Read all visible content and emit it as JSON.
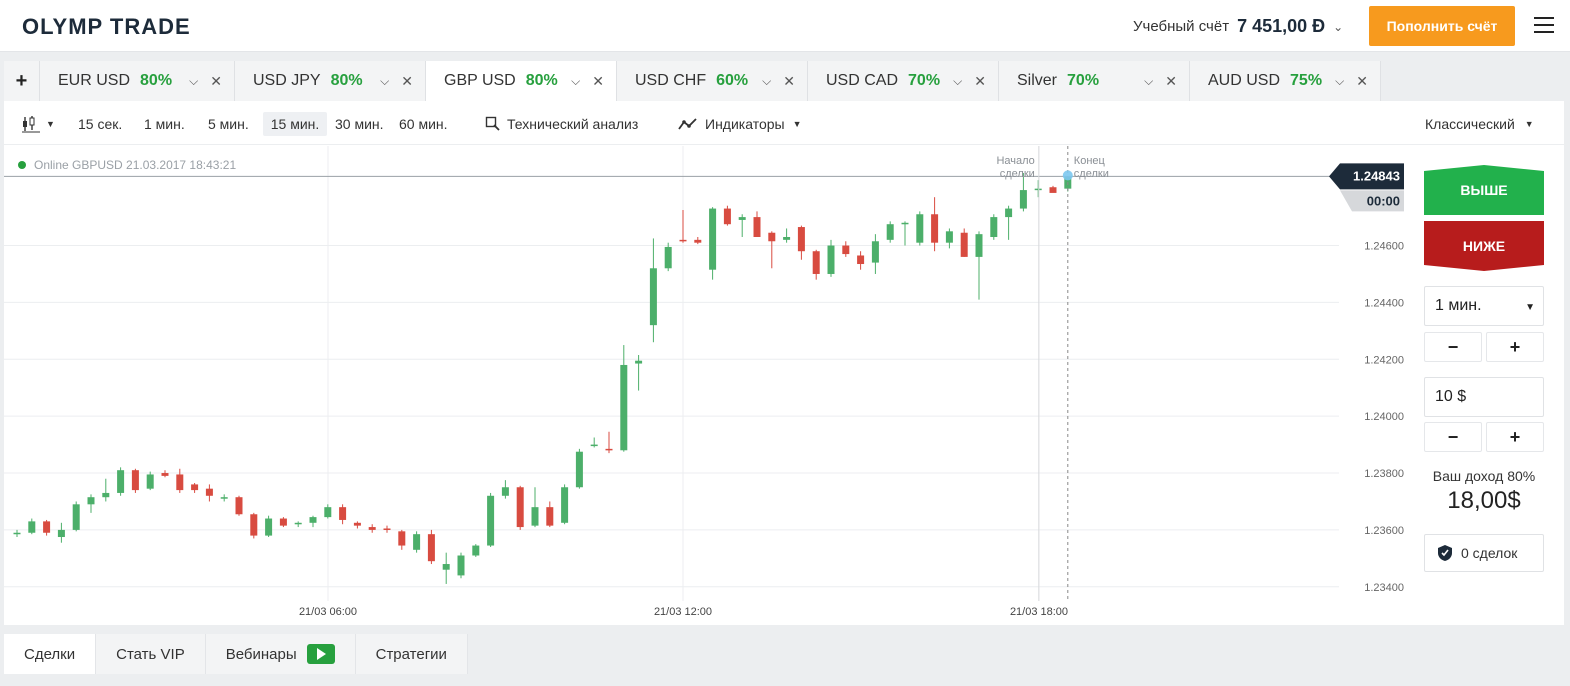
{
  "header": {
    "logo": "OLYMP TRADE",
    "account_label": "Учебный счёт",
    "balance": "7 451,00 Đ",
    "deposit_label": "Пополнить счёт"
  },
  "asset_tabs": [
    {
      "name": "EUR USD",
      "payout": "80%"
    },
    {
      "name": "USD JPY",
      "payout": "80%"
    },
    {
      "name": "GBP USD",
      "payout": "80%"
    },
    {
      "name": "USD CHF",
      "payout": "60%"
    },
    {
      "name": "USD CAD",
      "payout": "70%"
    },
    {
      "name": "Silver",
      "payout": "70%"
    },
    {
      "name": "AUD USD",
      "payout": "75%"
    }
  ],
  "toolbar": {
    "timeframes": [
      "15 сек.",
      "1 мин.",
      "5 мин.",
      "15 мин.",
      "30 мин.",
      "60 мин."
    ],
    "selected_timeframe": "15 мин.",
    "technical_analysis": "Технический анализ",
    "indicators": "Индикаторы",
    "chart_style": "Классический"
  },
  "status": {
    "online_text": "Online GBPUSD 21.03.2017 18:43:21"
  },
  "chart_markers": {
    "deal_start": [
      "Начало",
      "сделки"
    ],
    "deal_end": [
      "Конец",
      "сделки"
    ],
    "current_price": "1.24843",
    "countdown": "00:00"
  },
  "chart_data": {
    "type": "candlestick",
    "y_ticks": [
      "1.24600",
      "1.24400",
      "1.24200",
      "1.24000",
      "1.23800",
      "1.23600",
      "1.23400"
    ],
    "x_ticks": [
      "21/03 06:00",
      "21/03 12:00",
      "21/03 18:00"
    ],
    "ylim": [
      1.2335,
      1.2495
    ],
    "colors": {
      "up": "#4caf6a",
      "down": "#d84b40"
    },
    "candles": [
      {
        "o": 1.23585,
        "h": 1.236,
        "l": 1.23575,
        "c": 1.2359
      },
      {
        "o": 1.2359,
        "h": 1.2364,
        "l": 1.23585,
        "c": 1.2363
      },
      {
        "o": 1.2363,
        "h": 1.23635,
        "l": 1.2358,
        "c": 1.2359
      },
      {
        "o": 1.23575,
        "h": 1.23625,
        "l": 1.23555,
        "c": 1.236
      },
      {
        "o": 1.236,
        "h": 1.237,
        "l": 1.23595,
        "c": 1.2369
      },
      {
        "o": 1.2369,
        "h": 1.23725,
        "l": 1.2366,
        "c": 1.23715
      },
      {
        "o": 1.23715,
        "h": 1.2378,
        "l": 1.237,
        "c": 1.2373
      },
      {
        "o": 1.2373,
        "h": 1.2382,
        "l": 1.2372,
        "c": 1.2381
      },
      {
        "o": 1.2381,
        "h": 1.23815,
        "l": 1.2373,
        "c": 1.2374
      },
      {
        "o": 1.23745,
        "h": 1.23805,
        "l": 1.2374,
        "c": 1.23795
      },
      {
        "o": 1.238,
        "h": 1.2381,
        "l": 1.23785,
        "c": 1.2379
      },
      {
        "o": 1.23795,
        "h": 1.23815,
        "l": 1.2373,
        "c": 1.2374
      },
      {
        "o": 1.2376,
        "h": 1.23765,
        "l": 1.2373,
        "c": 1.2374
      },
      {
        "o": 1.23745,
        "h": 1.2376,
        "l": 1.237,
        "c": 1.2372
      },
      {
        "o": 1.2371,
        "h": 1.23725,
        "l": 1.237,
        "c": 1.23715
      },
      {
        "o": 1.23715,
        "h": 1.2372,
        "l": 1.2365,
        "c": 1.23655
      },
      {
        "o": 1.23655,
        "h": 1.2366,
        "l": 1.2357,
        "c": 1.2358
      },
      {
        "o": 1.2358,
        "h": 1.2365,
        "l": 1.23575,
        "c": 1.2364
      },
      {
        "o": 1.2364,
        "h": 1.23645,
        "l": 1.2361,
        "c": 1.23615
      },
      {
        "o": 1.2362,
        "h": 1.2363,
        "l": 1.2361,
        "c": 1.23625
      },
      {
        "o": 1.23625,
        "h": 1.2365,
        "l": 1.2361,
        "c": 1.23645
      },
      {
        "o": 1.23645,
        "h": 1.2369,
        "l": 1.2364,
        "c": 1.2368
      },
      {
        "o": 1.2368,
        "h": 1.2369,
        "l": 1.2362,
        "c": 1.23635
      },
      {
        "o": 1.23625,
        "h": 1.2363,
        "l": 1.23605,
        "c": 1.23615
      },
      {
        "o": 1.2361,
        "h": 1.2362,
        "l": 1.2359,
        "c": 1.236
      },
      {
        "o": 1.23605,
        "h": 1.23615,
        "l": 1.2359,
        "c": 1.236
      },
      {
        "o": 1.23595,
        "h": 1.236,
        "l": 1.2353,
        "c": 1.23545
      },
      {
        "o": 1.2353,
        "h": 1.23595,
        "l": 1.2352,
        "c": 1.23585
      },
      {
        "o": 1.23585,
        "h": 1.236,
        "l": 1.2348,
        "c": 1.2349
      },
      {
        "o": 1.2346,
        "h": 1.2352,
        "l": 1.2341,
        "c": 1.2348
      },
      {
        "o": 1.2344,
        "h": 1.2352,
        "l": 1.2343,
        "c": 1.2351
      },
      {
        "o": 1.2351,
        "h": 1.2355,
        "l": 1.23505,
        "c": 1.23545
      },
      {
        "o": 1.23545,
        "h": 1.2373,
        "l": 1.2354,
        "c": 1.2372
      },
      {
        "o": 1.2372,
        "h": 1.23775,
        "l": 1.2371,
        "c": 1.2375
      },
      {
        "o": 1.2375,
        "h": 1.23755,
        "l": 1.236,
        "c": 1.2361
      },
      {
        "o": 1.23615,
        "h": 1.2375,
        "l": 1.2361,
        "c": 1.2368
      },
      {
        "o": 1.2368,
        "h": 1.237,
        "l": 1.2361,
        "c": 1.23615
      },
      {
        "o": 1.23625,
        "h": 1.2376,
        "l": 1.2362,
        "c": 1.2375
      },
      {
        "o": 1.2375,
        "h": 1.23885,
        "l": 1.23745,
        "c": 1.23875
      },
      {
        "o": 1.239,
        "h": 1.23925,
        "l": 1.2389,
        "c": 1.239
      },
      {
        "o": 1.23885,
        "h": 1.23945,
        "l": 1.2387,
        "c": 1.2388
      },
      {
        "o": 1.2388,
        "h": 1.2425,
        "l": 1.23875,
        "c": 1.2418
      },
      {
        "o": 1.24185,
        "h": 1.24215,
        "l": 1.2409,
        "c": 1.24195
      },
      {
        "o": 1.2432,
        "h": 1.24625,
        "l": 1.2426,
        "c": 1.2452
      },
      {
        "o": 1.2452,
        "h": 1.2461,
        "l": 1.2451,
        "c": 1.24595
      },
      {
        "o": 1.2462,
        "h": 1.24725,
        "l": 1.2461,
        "c": 1.24615
      },
      {
        "o": 1.2462,
        "h": 1.2463,
        "l": 1.24605,
        "c": 1.2461
      },
      {
        "o": 1.24515,
        "h": 1.24735,
        "l": 1.2448,
        "c": 1.2473
      },
      {
        "o": 1.2473,
        "h": 1.2474,
        "l": 1.2467,
        "c": 1.24675
      },
      {
        "o": 1.2469,
        "h": 1.2471,
        "l": 1.2463,
        "c": 1.247
      },
      {
        "o": 1.247,
        "h": 1.2472,
        "l": 1.2463,
        "c": 1.2463
      },
      {
        "o": 1.24645,
        "h": 1.2465,
        "l": 1.2452,
        "c": 1.24615
      },
      {
        "o": 1.2462,
        "h": 1.2466,
        "l": 1.2461,
        "c": 1.2463
      },
      {
        "o": 1.24665,
        "h": 1.2467,
        "l": 1.2455,
        "c": 1.2458
      },
      {
        "o": 1.2458,
        "h": 1.24585,
        "l": 1.2448,
        "c": 1.245
      },
      {
        "o": 1.245,
        "h": 1.2462,
        "l": 1.2449,
        "c": 1.246
      },
      {
        "o": 1.246,
        "h": 1.24615,
        "l": 1.2456,
        "c": 1.2457
      },
      {
        "o": 1.24565,
        "h": 1.2458,
        "l": 1.24515,
        "c": 1.24535
      },
      {
        "o": 1.2454,
        "h": 1.2464,
        "l": 1.245,
        "c": 1.24615
      },
      {
        "o": 1.2462,
        "h": 1.24685,
        "l": 1.2461,
        "c": 1.24675
      },
      {
        "o": 1.24675,
        "h": 1.24685,
        "l": 1.246,
        "c": 1.2468
      },
      {
        "o": 1.2461,
        "h": 1.2472,
        "l": 1.246,
        "c": 1.2471
      },
      {
        "o": 1.2471,
        "h": 1.2477,
        "l": 1.2458,
        "c": 1.2461
      },
      {
        "o": 1.2461,
        "h": 1.2466,
        "l": 1.2459,
        "c": 1.2465
      },
      {
        "o": 1.24645,
        "h": 1.2466,
        "l": 1.2456,
        "c": 1.2456
      },
      {
        "o": 1.2456,
        "h": 1.2465,
        "l": 1.2441,
        "c": 1.2464
      },
      {
        "o": 1.2463,
        "h": 1.2471,
        "l": 1.2462,
        "c": 1.247
      },
      {
        "o": 1.247,
        "h": 1.2474,
        "l": 1.2462,
        "c": 1.2473
      },
      {
        "o": 1.2473,
        "h": 1.24855,
        "l": 1.2472,
        "c": 1.24795
      },
      {
        "o": 1.248,
        "h": 1.2483,
        "l": 1.2477,
        "c": 1.248
      },
      {
        "o": 1.24805,
        "h": 1.2481,
        "l": 1.2479,
        "c": 1.24785
      },
      {
        "o": 1.248,
        "h": 1.2484,
        "l": 1.2479,
        "c": 1.24843
      }
    ]
  },
  "trade_panel": {
    "up_label": "ВЫШЕ",
    "down_label": "НИЖЕ",
    "duration": "1 мин.",
    "amount": "10 $",
    "minus": "−",
    "plus": "+",
    "income_label": "Ваш доход 80%",
    "income_value": "18,00$",
    "trades_count": "0 сделок"
  },
  "bottom_tabs": [
    "Сделки",
    "Стать VIP",
    "Вебинары",
    "Стратегии"
  ]
}
